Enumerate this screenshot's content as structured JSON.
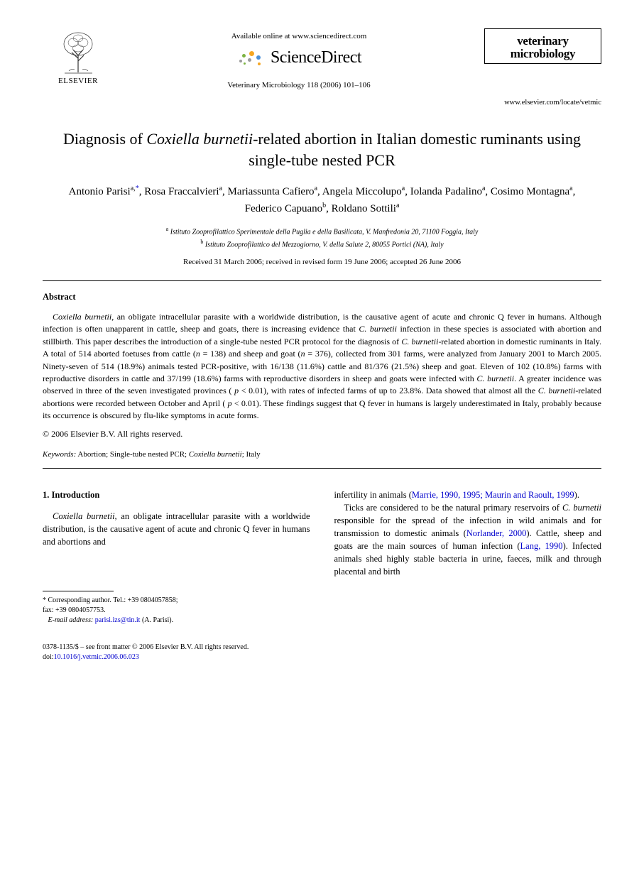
{
  "header": {
    "publisher_label": "ELSEVIER",
    "available_online": "Available online at www.sciencedirect.com",
    "platform_name": "ScienceDirect",
    "citation": "Veterinary Microbiology 118 (2006) 101–106",
    "journal_name_line1": "veterinary",
    "journal_name_line2": "microbiology",
    "journal_url": "www.elsevier.com/locate/vetmic"
  },
  "title": {
    "pre": "Diagnosis of ",
    "italic": "Coxiella burnetii",
    "post": "-related abortion in Italian domestic ruminants using single-tube nested PCR"
  },
  "authors": [
    {
      "name": "Antonio Parisi",
      "marks": "a,*"
    },
    {
      "name": "Rosa Fraccalvieri",
      "marks": "a"
    },
    {
      "name": "Mariassunta Cafiero",
      "marks": "a"
    },
    {
      "name": "Angela Miccolupo",
      "marks": "a"
    },
    {
      "name": "Iolanda Padalino",
      "marks": "a"
    },
    {
      "name": "Cosimo Montagna",
      "marks": "a"
    },
    {
      "name": "Federico Capuano",
      "marks": "b"
    },
    {
      "name": "Roldano Sottili",
      "marks": "a"
    }
  ],
  "affiliations": [
    {
      "mark": "a",
      "text": "Istituto Zooprofilattico Sperimentale della Puglia e della Basilicata, V. Manfredonia 20, 71100 Foggia, Italy"
    },
    {
      "mark": "b",
      "text": "Istituto Zooprofilattico del Mezzogiorno, V. della Salute 2, 80055 Portici (NA), Italy"
    }
  ],
  "dates": "Received 31 March 2006; received in revised form 19 June 2006; accepted 26 June 2006",
  "abstract": {
    "heading": "Abstract",
    "body_parts": [
      {
        "type": "italic",
        "text": "Coxiella burnetii"
      },
      {
        "type": "plain",
        "text": ", an obligate intracellular parasite with a worldwide distribution, is the causative agent of acute and chronic Q fever in humans. Although infection is often unapparent in cattle, sheep and goats, there is increasing evidence that "
      },
      {
        "type": "italic",
        "text": "C. burnetii"
      },
      {
        "type": "plain",
        "text": " infection in these species is associated with abortion and stillbirth. This paper describes the introduction of a single-tube nested PCR protocol for the diagnosis of "
      },
      {
        "type": "italic",
        "text": "C. burnetii"
      },
      {
        "type": "plain",
        "text": "-related abortion in domestic ruminants in Italy. A total of 514 aborted foetuses from cattle ("
      },
      {
        "type": "italic",
        "text": "n"
      },
      {
        "type": "plain",
        "text": " = 138) and sheep and goat ("
      },
      {
        "type": "italic",
        "text": "n"
      },
      {
        "type": "plain",
        "text": " = 376), collected from 301 farms, were analyzed from January 2001 to March 2005. Ninety-seven of 514 (18.9%) animals tested PCR-positive, with 16/138 (11.6%) cattle and 81/376 (21.5%) sheep and goat. Eleven of 102 (10.8%) farms with reproductive disorders in cattle and 37/199 (18.6%) farms with reproductive disorders in sheep and goats were infected with "
      },
      {
        "type": "italic",
        "text": "C. burnetii"
      },
      {
        "type": "plain",
        "text": ". A greater incidence was observed in three of the seven investigated provinces ( "
      },
      {
        "type": "italic",
        "text": "p"
      },
      {
        "type": "plain",
        "text": " < 0.01), with rates of infected farms of up to 23.8%. Data showed that almost all the "
      },
      {
        "type": "italic",
        "text": "C. burnetii"
      },
      {
        "type": "plain",
        "text": "-related abortions were recorded between October and April ( "
      },
      {
        "type": "italic",
        "text": "p"
      },
      {
        "type": "plain",
        "text": " < 0.01). These findings suggest that Q fever in humans is largely underestimated in Italy, probably because its occurrence is obscured by flu-like symptoms in acute forms."
      }
    ],
    "copyright": "© 2006 Elsevier B.V. All rights reserved."
  },
  "keywords": {
    "label": "Keywords:",
    "text_parts": [
      {
        "type": "plain",
        "text": " Abortion; Single-tube nested PCR; "
      },
      {
        "type": "italic",
        "text": "Coxiella burnetii"
      },
      {
        "type": "plain",
        "text": "; Italy"
      }
    ]
  },
  "introduction": {
    "heading": "1.  Introduction",
    "left_parts": [
      {
        "type": "italic",
        "text": "Coxiella burnetii"
      },
      {
        "type": "plain",
        "text": ", an obligate intracellular parasite with a worldwide distribution, is the causative agent of acute and chronic Q fever in humans and abortions and"
      }
    ],
    "right_p1_parts": [
      {
        "type": "plain",
        "text": "infertility in animals ("
      },
      {
        "type": "ref",
        "text": "Marrie, 1990, 1995; Maurin and Raoult, 1999"
      },
      {
        "type": "plain",
        "text": ")."
      }
    ],
    "right_p2_parts": [
      {
        "type": "plain",
        "text": "Ticks are considered to be the natural primary reservoirs of "
      },
      {
        "type": "italic",
        "text": "C. burnetii"
      },
      {
        "type": "plain",
        "text": " responsible for the spread of the infection in wild animals and for transmission to domestic animals ("
      },
      {
        "type": "ref",
        "text": "Norlander, 2000"
      },
      {
        "type": "plain",
        "text": "). Cattle, sheep and goats are the main sources of human infection ("
      },
      {
        "type": "ref",
        "text": "Lang, 1990"
      },
      {
        "type": "plain",
        "text": "). Infected animals shed highly stable bacteria in urine, faeces, milk and through placental and birth"
      }
    ]
  },
  "footnotes": {
    "corresponding": "* Corresponding author. Tel.: +39 0804057858;",
    "fax": "fax: +39 0804057753.",
    "email_label": "E-mail address:",
    "email": "parisi.izs@tin.it",
    "email_author": "(A. Parisi)."
  },
  "footer": {
    "line1": "0378-1135/$ – see front matter © 2006 Elsevier B.V. All rights reserved.",
    "doi_label": "doi:",
    "doi": "10.1016/j.vetmic.2006.06.023"
  },
  "colors": {
    "link": "#0000cc",
    "text": "#000000",
    "sd_orange": "#f5a623",
    "sd_green": "#7cb342",
    "sd_blue": "#4a90d9",
    "sd_gray": "#9b9b9b"
  }
}
